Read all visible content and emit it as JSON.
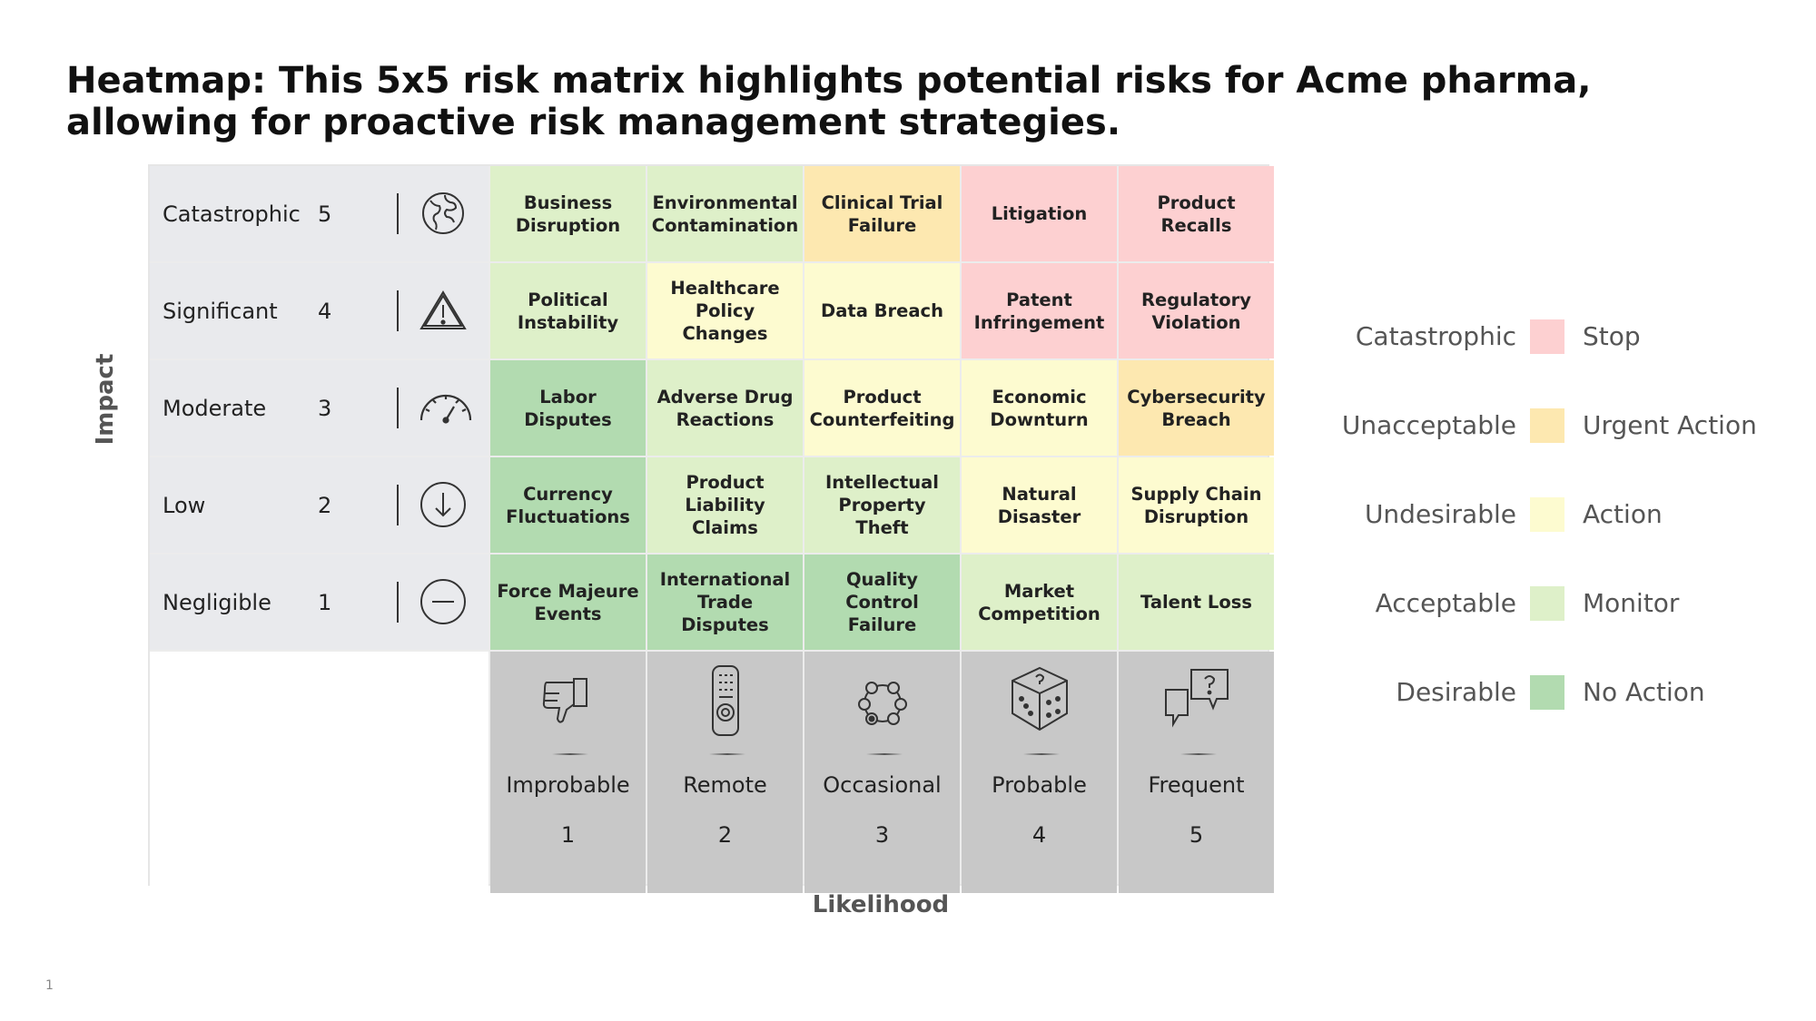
{
  "title": "Heatmap: This 5x5 risk matrix highlights potential risks for Acme pharma, allowing for proactive risk management strategies.",
  "axes": {
    "impact": "Impact",
    "likelihood": "Likelihood"
  },
  "impact_rows": [
    {
      "label": "Catastrophic",
      "value": "5",
      "icon": "globe-icon"
    },
    {
      "label": "Significant",
      "value": "4",
      "icon": "warning-triangle-icon"
    },
    {
      "label": "Moderate",
      "value": "3",
      "icon": "speedometer-icon"
    },
    {
      "label": "Low",
      "value": "2",
      "icon": "down-arrow-circle-icon"
    },
    {
      "label": "Negligible",
      "value": "1",
      "icon": "minus-circle-icon"
    }
  ],
  "likelihood_cols": [
    {
      "label": "Improbable",
      "value": "1",
      "icon": "thumbs-down-icon"
    },
    {
      "label": "Remote",
      "value": "2",
      "icon": "remote-control-icon"
    },
    {
      "label": "Occasional",
      "value": "3",
      "icon": "network-nodes-icon"
    },
    {
      "label": "Probable",
      "value": "4",
      "icon": "dice-icon"
    },
    {
      "label": "Frequent",
      "value": "5",
      "icon": "question-chat-icon"
    }
  ],
  "cells": [
    [
      {
        "text": "Business Disruption",
        "level": "acceptable"
      },
      {
        "text": "Environmental Contamination",
        "level": "acceptable"
      },
      {
        "text": "Clinical Trial Failure",
        "level": "unacceptable"
      },
      {
        "text": "Litigation",
        "level": "catastrophic"
      },
      {
        "text": "Product Recalls",
        "level": "catastrophic"
      }
    ],
    [
      {
        "text": "Political Instability",
        "level": "acceptable"
      },
      {
        "text": "Healthcare Policy Changes",
        "level": "undesirable"
      },
      {
        "text": "Data Breach",
        "level": "undesirable"
      },
      {
        "text": "Patent Infringement",
        "level": "catastrophic"
      },
      {
        "text": "Regulatory Violation",
        "level": "catastrophic"
      }
    ],
    [
      {
        "text": "Labor Disputes",
        "level": "desirable"
      },
      {
        "text": "Adverse Drug Reactions",
        "level": "acceptable"
      },
      {
        "text": "Product Counterfeiting",
        "level": "undesirable"
      },
      {
        "text": "Economic Downturn",
        "level": "undesirable"
      },
      {
        "text": "Cybersecurity Breach",
        "level": "unacceptable"
      }
    ],
    [
      {
        "text": "Currency Fluctuations",
        "level": "desirable"
      },
      {
        "text": "Product Liability Claims",
        "level": "acceptable"
      },
      {
        "text": "Intellectual Property Theft",
        "level": "acceptable"
      },
      {
        "text": "Natural Disaster",
        "level": "undesirable"
      },
      {
        "text": "Supply Chain Disruption",
        "level": "undesirable"
      }
    ],
    [
      {
        "text": "Force Majeure Events",
        "level": "desirable"
      },
      {
        "text": "International Trade Disputes",
        "level": "desirable"
      },
      {
        "text": "Quality Control Failure",
        "level": "desirable"
      },
      {
        "text": "Market Competition",
        "level": "acceptable"
      },
      {
        "text": "Talent Loss",
        "level": "acceptable"
      }
    ]
  ],
  "colors": {
    "catastrophic": "#fdd0d1",
    "unacceptable": "#fde8b0",
    "undesirable": "#fdfbd0",
    "acceptable": "#def0c9",
    "desirable": "#b2dbb0"
  },
  "legend": [
    {
      "level": "Catastrophic",
      "action": "Stop",
      "key": "catastrophic"
    },
    {
      "level": "Unacceptable",
      "action": "Urgent Action",
      "key": "unacceptable"
    },
    {
      "level": "Undesirable",
      "action": "Action",
      "key": "undesirable"
    },
    {
      "level": "Acceptable",
      "action": "Monitor",
      "key": "acceptable"
    },
    {
      "level": "Desirable",
      "action": "No Action",
      "key": "desirable"
    }
  ],
  "page_number": "1"
}
